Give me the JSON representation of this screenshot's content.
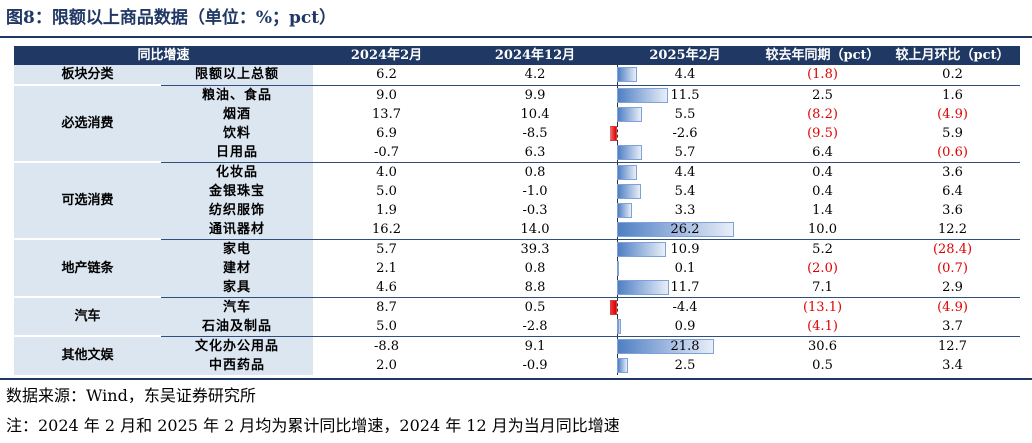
{
  "figure": {
    "title": "图8：限额以上商品数据（单位：%；pct）",
    "source": "数据来源：Wind，东吴证券研究所",
    "note": "注：2024 年 2 月和 2025 年 2 月均为累计同比增速，2024 年 12 月为当月同比增速"
  },
  "table": {
    "headers": [
      "同比增速",
      "2024年2月",
      "2024年12月",
      "2025年2月",
      "较去年同期（pct）",
      "较上月环比（pct）"
    ],
    "bar_scale_max": 26.2,
    "colors": {
      "header_bg": "#1f3864",
      "category_bg": "#dce6f1",
      "negative_text": "#e00000",
      "positive_bar": "#4f7fc4",
      "negative_bar": "#e00000"
    },
    "groups": [
      {
        "category": "板块分类",
        "rows": [
          {
            "name": "限额以上总额",
            "v2402": "6.2",
            "v2412": "4.2",
            "v2502": "4.4",
            "v2502_num": 4.4,
            "yoy": "(1.8)",
            "yoy_neg": true,
            "mom": "0.2",
            "mom_neg": false
          }
        ]
      },
      {
        "category": "必选消费",
        "rows": [
          {
            "name": "粮油、食品",
            "v2402": "9.0",
            "v2412": "9.9",
            "v2502": "11.5",
            "v2502_num": 11.5,
            "yoy": "2.5",
            "yoy_neg": false,
            "mom": "1.6",
            "mom_neg": false
          },
          {
            "name": "烟酒",
            "v2402": "13.7",
            "v2412": "10.4",
            "v2502": "5.5",
            "v2502_num": 5.5,
            "yoy": "(8.2)",
            "yoy_neg": true,
            "mom": "(4.9)",
            "mom_neg": true
          },
          {
            "name": "饮料",
            "v2402": "6.9",
            "v2412": "-8.5",
            "v2502": "-2.6",
            "v2502_num": -2.6,
            "yoy": "(9.5)",
            "yoy_neg": true,
            "mom": "5.9",
            "mom_neg": false
          },
          {
            "name": "日用品",
            "v2402": "-0.7",
            "v2412": "6.3",
            "v2502": "5.7",
            "v2502_num": 5.7,
            "yoy": "6.4",
            "yoy_neg": false,
            "mom": "(0.6)",
            "mom_neg": true
          }
        ]
      },
      {
        "category": "可选消费",
        "rows": [
          {
            "name": "化妆品",
            "v2402": "4.0",
            "v2412": "0.8",
            "v2502": "4.4",
            "v2502_num": 4.4,
            "yoy": "0.4",
            "yoy_neg": false,
            "mom": "3.6",
            "mom_neg": false
          },
          {
            "name": "金银珠宝",
            "v2402": "5.0",
            "v2412": "-1.0",
            "v2502": "5.4",
            "v2502_num": 5.4,
            "yoy": "0.4",
            "yoy_neg": false,
            "mom": "6.4",
            "mom_neg": false
          },
          {
            "name": "纺织服饰",
            "v2402": "1.9",
            "v2412": "-0.3",
            "v2502": "3.3",
            "v2502_num": 3.3,
            "yoy": "1.4",
            "yoy_neg": false,
            "mom": "3.6",
            "mom_neg": false
          },
          {
            "name": "通讯器材",
            "v2402": "16.2",
            "v2412": "14.0",
            "v2502": "26.2",
            "v2502_num": 26.2,
            "yoy": "10.0",
            "yoy_neg": false,
            "mom": "12.2",
            "mom_neg": false
          }
        ]
      },
      {
        "category": "地产链条",
        "rows": [
          {
            "name": "家电",
            "v2402": "5.7",
            "v2412": "39.3",
            "v2502": "10.9",
            "v2502_num": 10.9,
            "yoy": "5.2",
            "yoy_neg": false,
            "mom": "(28.4)",
            "mom_neg": true
          },
          {
            "name": "建材",
            "v2402": "2.1",
            "v2412": "0.8",
            "v2502": "0.1",
            "v2502_num": 0.1,
            "yoy": "(2.0)",
            "yoy_neg": true,
            "mom": "(0.7)",
            "mom_neg": true
          },
          {
            "name": "家具",
            "v2402": "4.6",
            "v2412": "8.8",
            "v2502": "11.7",
            "v2502_num": 11.7,
            "yoy": "7.1",
            "yoy_neg": false,
            "mom": "2.9",
            "mom_neg": false
          }
        ]
      },
      {
        "category": "汽车",
        "rows": [
          {
            "name": "汽车",
            "v2402": "8.7",
            "v2412": "0.5",
            "v2502": "-4.4",
            "v2502_num": -4.4,
            "yoy": "(13.1)",
            "yoy_neg": true,
            "mom": "(4.9)",
            "mom_neg": true
          },
          {
            "name": "石油及制品",
            "v2402": "5.0",
            "v2412": "-2.8",
            "v2502": "0.9",
            "v2502_num": 0.9,
            "yoy": "(4.1)",
            "yoy_neg": true,
            "mom": "3.7",
            "mom_neg": false
          }
        ]
      },
      {
        "category": "其他文娱",
        "rows": [
          {
            "name": "文化办公用品",
            "v2402": "-8.8",
            "v2412": "9.1",
            "v2502": "21.8",
            "v2502_num": 21.8,
            "yoy": "30.6",
            "yoy_neg": false,
            "mom": "12.7",
            "mom_neg": false
          },
          {
            "name": "中西药品",
            "v2402": "2.0",
            "v2412": "-0.9",
            "v2502": "2.5",
            "v2502_num": 2.5,
            "yoy": "0.5",
            "yoy_neg": false,
            "mom": "3.4",
            "mom_neg": false
          }
        ]
      }
    ]
  }
}
